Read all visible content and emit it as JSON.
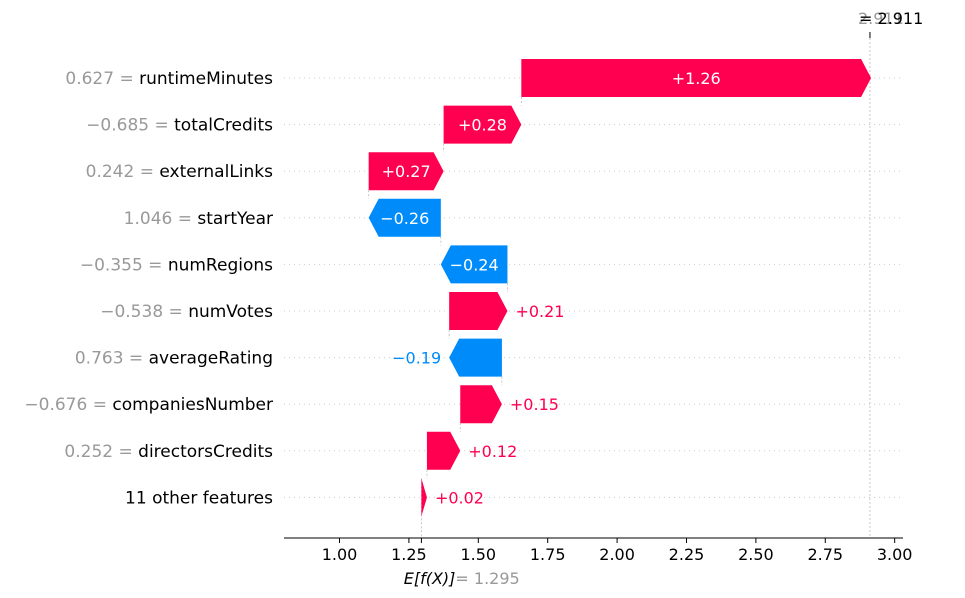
{
  "chart_data": {
    "type": "waterfall",
    "base_value": 1.295,
    "base_label": "E[f(X)]",
    "base_value_text": "= 1.295",
    "final_value": 2.911,
    "final_label": "= 2.911",
    "final_value_text": "2.911",
    "xlim": [
      0.8,
      3.03
    ],
    "xticks": [
      1.0,
      1.25,
      1.5,
      1.75,
      2.0,
      2.25,
      2.5,
      2.75,
      3.0
    ],
    "xtick_labels": [
      "1.00",
      "1.25",
      "1.50",
      "1.75",
      "2.00",
      "2.25",
      "2.50",
      "2.75",
      "3.00"
    ],
    "positive_color": "#ff0051",
    "negative_color": "#008bfb",
    "features": [
      {
        "name": "runtimeMinutes",
        "value_text": "0.627 =",
        "contribution": 1.26,
        "label": "+1.26"
      },
      {
        "name": "totalCredits",
        "value_text": "−0.685 =",
        "contribution": 0.28,
        "label": "+0.28"
      },
      {
        "name": "externalLinks",
        "value_text": "0.242 =",
        "contribution": 0.27,
        "label": "+0.27"
      },
      {
        "name": "startYear",
        "value_text": "1.046 =",
        "contribution": -0.26,
        "label": "−0.26"
      },
      {
        "name": "numRegions",
        "value_text": "−0.355 =",
        "contribution": -0.24,
        "label": "−0.24"
      },
      {
        "name": "numVotes",
        "value_text": "−0.538 =",
        "contribution": 0.21,
        "label": "+0.21"
      },
      {
        "name": "averageRating",
        "value_text": "0.763 =",
        "contribution": -0.19,
        "label": "−0.19"
      },
      {
        "name": "companiesNumber",
        "value_text": "−0.676 =",
        "contribution": 0.15,
        "label": "+0.15"
      },
      {
        "name": "directorsCredits",
        "value_text": "0.252 =",
        "contribution": 0.12,
        "label": "+0.12"
      },
      {
        "name": "11 other features",
        "value_text": "",
        "contribution": 0.02,
        "label": "+0.02"
      }
    ]
  }
}
